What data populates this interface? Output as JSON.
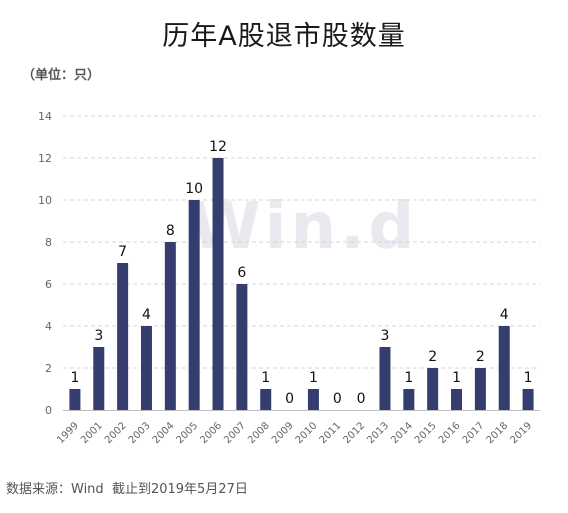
{
  "header": {
    "title": "历年A股退市股数量",
    "unit": "（单位：只）"
  },
  "watermark": "Win.d",
  "footer": {
    "source": "数据来源：Wind",
    "cutoff": "截止到2019年5月27日"
  },
  "colors": {
    "bar": "#343d6e",
    "grid": "#d4d4d4",
    "axis": "#bfbfbf",
    "tick_text": "#666666",
    "label_text": "#111111"
  },
  "chart_data": {
    "type": "bar",
    "categories": [
      "1999",
      "2001",
      "2002",
      "2003",
      "2004",
      "2005",
      "2006",
      "2007",
      "2008",
      "2009",
      "2010",
      "2011",
      "2012",
      "2013",
      "2014",
      "2015",
      "2016",
      "2017",
      "2018",
      "2019"
    ],
    "values": [
      1,
      3,
      7,
      4,
      8,
      10,
      12,
      6,
      1,
      0,
      1,
      0,
      0,
      3,
      1,
      2,
      1,
      2,
      4,
      1
    ],
    "ylim": [
      0,
      14
    ],
    "yticks": [
      0,
      2,
      4,
      6,
      8,
      10,
      12,
      14
    ],
    "grid": true,
    "data_labels": true,
    "legend": "none"
  }
}
